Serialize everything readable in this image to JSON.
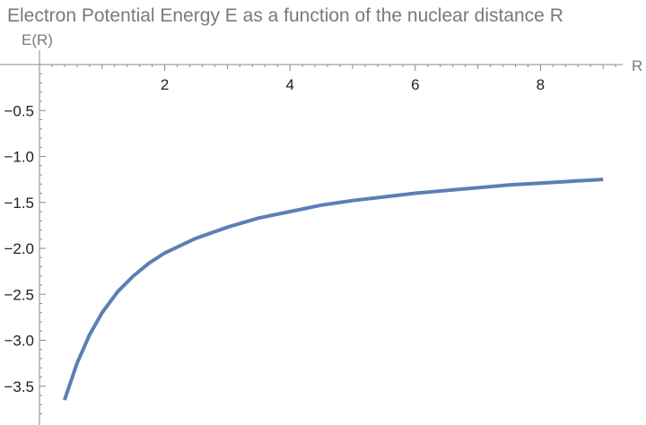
{
  "chart_data": {
    "type": "line",
    "title": "Electron Potential Energy E as a function of the nuclear distance R",
    "xlabel": "R",
    "ylabel": "E(R)",
    "xlim": [
      0,
      9.4
    ],
    "ylim": [
      -3.85,
      0.05
    ],
    "x_ticks": [
      2,
      4,
      6,
      8
    ],
    "x_tick_labels": [
      "2",
      "4",
      "6",
      "8"
    ],
    "y_ticks": [
      -0.5,
      -1.0,
      -1.5,
      -2.0,
      -2.5,
      -3.0,
      -3.5
    ],
    "y_tick_labels": [
      "−0.5",
      "−1.0",
      "−1.5",
      "−2.0",
      "−2.5",
      "−3.0",
      "−3.5"
    ],
    "x_minor_step": 0.2,
    "y_minor_step": 0.1,
    "grid": false,
    "series": [
      {
        "color": "#5b7fb5",
        "x": [
          0.4,
          0.6,
          0.8,
          1.0,
          1.25,
          1.5,
          1.75,
          2.0,
          2.5,
          3.0,
          3.5,
          4.0,
          4.5,
          5.0,
          5.5,
          6.0,
          6.5,
          7.0,
          7.5,
          8.0,
          8.5,
          9.0
        ],
        "y": [
          -3.65,
          -3.25,
          -2.94,
          -2.7,
          -2.47,
          -2.3,
          -2.16,
          -2.05,
          -1.89,
          -1.77,
          -1.67,
          -1.6,
          -1.53,
          -1.48,
          -1.44,
          -1.4,
          -1.37,
          -1.34,
          -1.31,
          -1.29,
          -1.27,
          -1.25
        ]
      }
    ]
  }
}
